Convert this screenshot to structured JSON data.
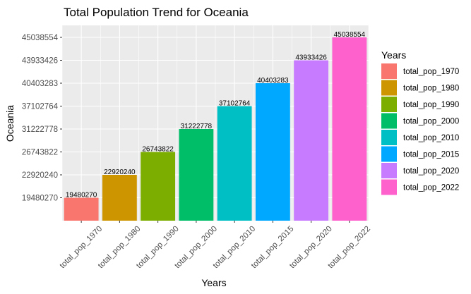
{
  "chart_data": {
    "type": "bar",
    "title": "Total Population Trend for Oceania",
    "xlabel": "Years",
    "ylabel": "Oceania",
    "categories": [
      "total_pop_1970",
      "total_pop_1980",
      "total_pop_1990",
      "total_pop_2000",
      "total_pop_2010",
      "total_pop_2015",
      "total_pop_2020",
      "total_pop_2022"
    ],
    "values": [
      19480270,
      22920240,
      26743822,
      31222778,
      37102764,
      40403283,
      43933426,
      45038554
    ],
    "value_labels": [
      "19480270",
      "22920240",
      "26743822",
      "31222778",
      "37102764",
      "40403283",
      "43933426",
      "45038554"
    ],
    "y_axis_note": "discrete axis: one tick per bar value, evenly spaced",
    "y_ticks": [
      "19480270",
      "22920240",
      "26743822",
      "31222778",
      "37102764",
      "40403283",
      "43933426",
      "45038554"
    ],
    "colors": [
      "#F8766D",
      "#CD9600",
      "#7CAE00",
      "#00BE67",
      "#00BFC4",
      "#00A9FF",
      "#C77CFF",
      "#FF61CC"
    ],
    "panel_background": "#EBEBEB",
    "grid": true,
    "legend": {
      "title": "Years",
      "position": "right",
      "entries": [
        "total_pop_1970",
        "total_pop_1980",
        "total_pop_1990",
        "total_pop_2000",
        "total_pop_2010",
        "total_pop_2015",
        "total_pop_2020",
        "total_pop_2022"
      ]
    }
  }
}
